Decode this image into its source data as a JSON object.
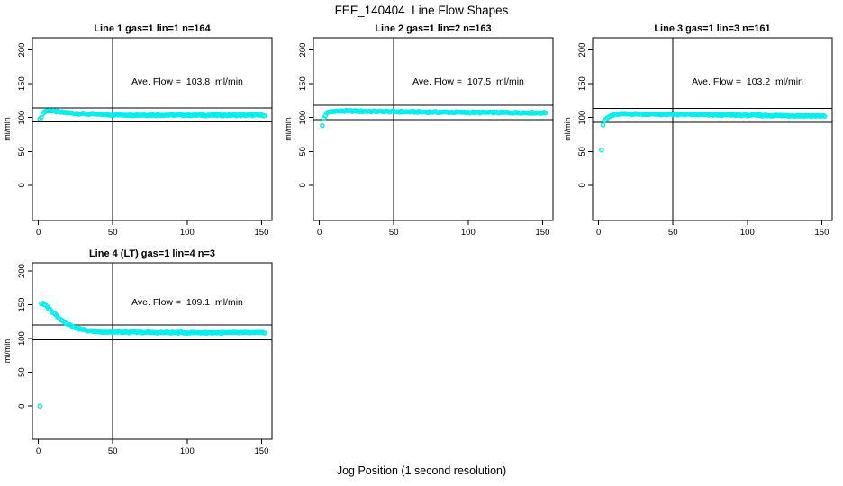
{
  "page": {
    "title": "FEF_140404  Line Flow Shapes",
    "xlabel": "Jog Position (1 second resolution)",
    "point_color": "#00eeee",
    "axis_color": "#000000"
  },
  "chart_data": [
    {
      "type": "scatter",
      "title": "Line 1 gas=1 lin=1 n=164",
      "annotation": "Ave. Flow =  103.8  ml/min",
      "ave_flow_ml_min": 103.8,
      "n": 164,
      "ylabel": "ml/min",
      "xticks": [
        0,
        50,
        100,
        150
      ],
      "yticks": [
        0,
        50,
        100,
        150,
        200
      ],
      "xlim": [
        -4,
        157
      ],
      "ylim": [
        -52,
        218
      ],
      "vline_x": 50,
      "hlines": [
        114.2,
        93.4
      ],
      "x_range": [
        1,
        152
      ],
      "control_points": [
        [
          1,
          97
        ],
        [
          2,
          101
        ],
        [
          3,
          105.5
        ],
        [
          4,
          108
        ],
        [
          5,
          109.5
        ],
        [
          7,
          110
        ],
        [
          10,
          109.5
        ],
        [
          15,
          108
        ],
        [
          20,
          107
        ],
        [
          25,
          106.3
        ],
        [
          30,
          105.7
        ],
        [
          40,
          104.8
        ],
        [
          50,
          104.2
        ],
        [
          60,
          104
        ],
        [
          80,
          103.8
        ],
        [
          100,
          103.7
        ],
        [
          120,
          103.6
        ],
        [
          152,
          103.5
        ]
      ],
      "outliers": []
    },
    {
      "type": "scatter",
      "title": "Line 2 gas=1 lin=2 n=163",
      "annotation": "Ave. Flow =  107.5  ml/min",
      "ave_flow_ml_min": 107.5,
      "n": 163,
      "ylabel": "ml/min",
      "xticks": [
        0,
        50,
        100,
        150
      ],
      "yticks": [
        0,
        50,
        100,
        150,
        200
      ],
      "xlim": [
        -4,
        157
      ],
      "ylim": [
        -52,
        218
      ],
      "vline_x": 50,
      "hlines": [
        118.3,
        96.8
      ],
      "x_range": [
        3,
        152
      ],
      "control_points": [
        [
          3,
          99
        ],
        [
          4,
          103
        ],
        [
          5,
          106
        ],
        [
          6,
          107.5
        ],
        [
          8,
          108.8
        ],
        [
          10,
          109.3
        ],
        [
          15,
          109.6
        ],
        [
          20,
          109.7
        ],
        [
          30,
          109.3
        ],
        [
          40,
          109
        ],
        [
          60,
          108.5
        ],
        [
          80,
          108
        ],
        [
          100,
          107.7
        ],
        [
          120,
          107.4
        ],
        [
          152,
          107
        ]
      ],
      "outliers": [
        [
          2,
          88
        ]
      ]
    },
    {
      "type": "scatter",
      "title": "Line 3 gas=1 lin=3 n=161",
      "annotation": "Ave. Flow =  103.2  ml/min",
      "ave_flow_ml_min": 103.2,
      "n": 161,
      "ylabel": "ml/min",
      "xticks": [
        0,
        50,
        100,
        150
      ],
      "yticks": [
        0,
        50,
        100,
        150,
        200
      ],
      "xlim": [
        -4,
        157
      ],
      "ylim": [
        -52,
        218
      ],
      "vline_x": 50,
      "hlines": [
        113.5,
        92.9
      ],
      "x_range": [
        4,
        152
      ],
      "control_points": [
        [
          4,
          95
        ],
        [
          5,
          97.5
        ],
        [
          6,
          99.5
        ],
        [
          7,
          101
        ],
        [
          8,
          102.3
        ],
        [
          10,
          103.8
        ],
        [
          12,
          104.7
        ],
        [
          15,
          105.2
        ],
        [
          20,
          105.4
        ],
        [
          30,
          105.3
        ],
        [
          40,
          105
        ],
        [
          60,
          104.5
        ],
        [
          80,
          104
        ],
        [
          100,
          103.5
        ],
        [
          120,
          103
        ],
        [
          152,
          102.5
        ]
      ],
      "outliers": [
        [
          2,
          52
        ],
        [
          3,
          89
        ]
      ]
    },
    {
      "type": "scatter",
      "title": "Line 4 (LT) gas=1 lin=4 n=3",
      "annotation": "Ave. Flow =  109.1  ml/min",
      "ave_flow_ml_min": 109.1,
      "n": 3,
      "ylabel": "ml/min",
      "xticks": [
        0,
        50,
        100,
        150
      ],
      "yticks": [
        0,
        50,
        100,
        150,
        200
      ],
      "xlim": [
        -4,
        157
      ],
      "ylim": [
        -49,
        212
      ],
      "vline_x": 50,
      "hlines": [
        120.0,
        98.2
      ],
      "x_range": [
        2,
        152
      ],
      "control_points": [
        [
          2,
          152
        ],
        [
          3,
          151.5
        ],
        [
          4,
          150
        ],
        [
          5,
          148.5
        ],
        [
          6,
          146.5
        ],
        [
          8,
          142.5
        ],
        [
          10,
          138.5
        ],
        [
          12,
          134.5
        ],
        [
          14,
          130.5
        ],
        [
          16,
          127
        ],
        [
          18,
          124
        ],
        [
          20,
          121.5
        ],
        [
          23,
          118
        ],
        [
          26,
          115.5
        ],
        [
          30,
          113
        ],
        [
          34,
          111.5
        ],
        [
          38,
          110.6
        ],
        [
          45,
          109.8
        ],
        [
          50,
          109.5
        ],
        [
          60,
          109.2
        ],
        [
          80,
          108.9
        ],
        [
          100,
          108.7
        ],
        [
          120,
          108.6
        ],
        [
          152,
          108.5
        ]
      ],
      "outliers": [
        [
          1,
          0
        ]
      ]
    }
  ]
}
